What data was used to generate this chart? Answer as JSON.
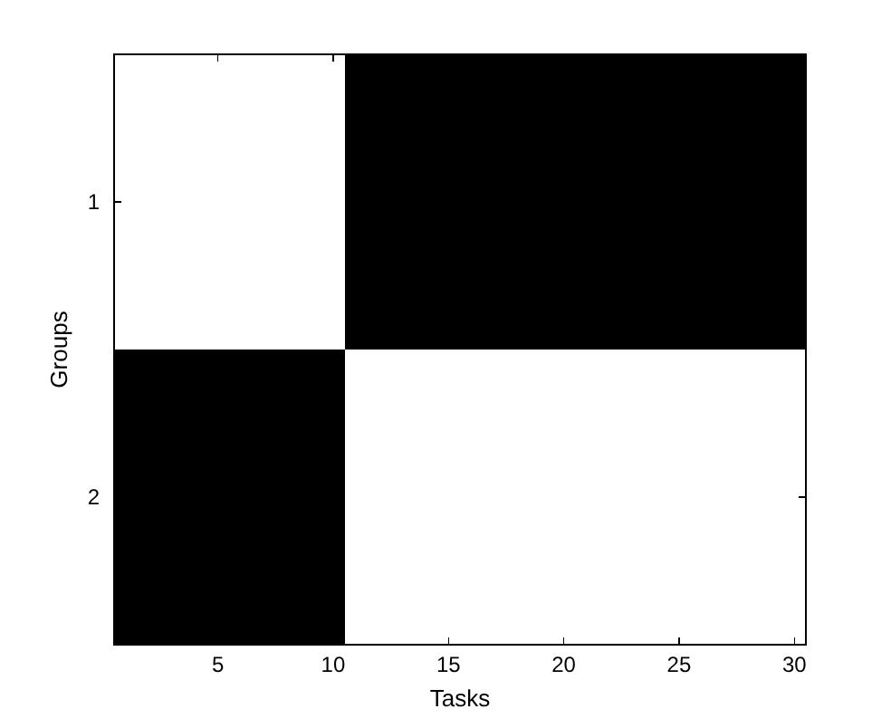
{
  "chart_data": {
    "type": "bar",
    "orientation": "horizontal",
    "xlabel": "Tasks",
    "ylabel": "Groups",
    "categories": [
      "1",
      "2"
    ],
    "base": [
      10.5,
      0.5
    ],
    "values": [
      20,
      10
    ],
    "color": "#000000",
    "xlim": [
      0.5,
      30.5
    ],
    "xticks": [
      5,
      10,
      15,
      20,
      25,
      30
    ]
  }
}
